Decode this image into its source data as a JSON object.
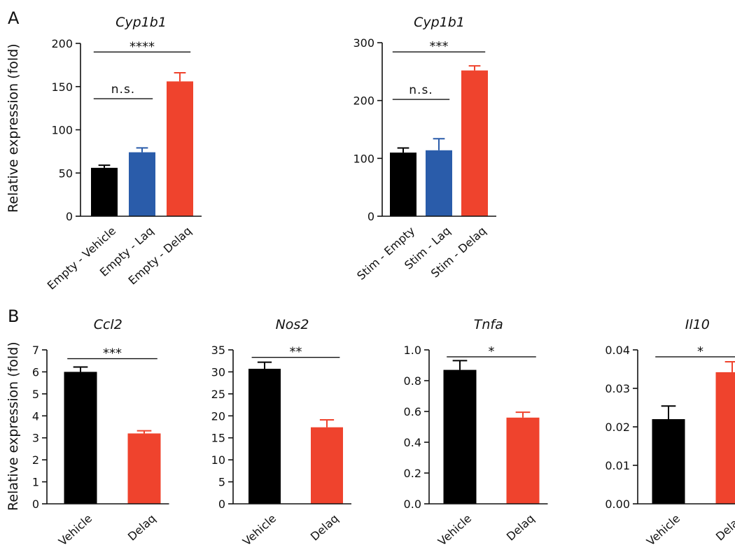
{
  "panels": [
    {
      "letter": "A",
      "ylabel": "Relative expression (fold)"
    },
    {
      "letter": "B",
      "ylabel": "Relative expression (fold)"
    }
  ],
  "colors": {
    "black": "#000000",
    "blue": "#2a5caa",
    "red": "#ef432d"
  },
  "chart_data": [
    {
      "type": "bar",
      "title": "Cyp1b1",
      "categories": [
        "Empty - Vehicle",
        "Empty - Laq",
        "Empty - Delaq"
      ],
      "values": [
        56,
        74,
        156
      ],
      "errors": [
        3,
        5,
        10
      ],
      "colors": [
        "#000000",
        "#2a5caa",
        "#ef432d"
      ],
      "ylim": [
        0,
        200
      ],
      "yticks": [
        0,
        50,
        100,
        150,
        200
      ],
      "annotations": [
        {
          "from": 0,
          "to": 1,
          "label": "n.s.",
          "y": 136
        },
        {
          "from": 0,
          "to": 2,
          "label": "****",
          "y": 190
        }
      ]
    },
    {
      "type": "bar",
      "title": "Cyp1b1",
      "categories": [
        "Stim - Empty",
        "Stim - Laq",
        "Stim - Delaq"
      ],
      "values": [
        110,
        114,
        252
      ],
      "errors": [
        8,
        20,
        8
      ],
      "colors": [
        "#000000",
        "#2a5caa",
        "#ef432d"
      ],
      "ylim": [
        0,
        300
      ],
      "yticks": [
        0,
        100,
        200,
        300
      ],
      "annotations": [
        {
          "from": 0,
          "to": 1,
          "label": "n.s.",
          "y": 202
        },
        {
          "from": 0,
          "to": 2,
          "label": "***",
          "y": 284
        }
      ]
    },
    {
      "type": "bar",
      "title": "Ccl2",
      "categories": [
        "Vehicle",
        "Delaq"
      ],
      "values": [
        6.0,
        3.2
      ],
      "errors": [
        0.22,
        0.12
      ],
      "colors": [
        "#000000",
        "#ef432d"
      ],
      "ylim": [
        0,
        7
      ],
      "yticks": [
        0,
        1,
        2,
        3,
        4,
        5,
        6,
        7
      ],
      "annotations": [
        {
          "from": 0,
          "to": 1,
          "label": "***",
          "y": 6.6
        }
      ]
    },
    {
      "type": "bar",
      "title": "Nos2",
      "categories": [
        "Vehicle",
        "Delaq"
      ],
      "values": [
        30.7,
        17.4
      ],
      "errors": [
        1.5,
        1.7
      ],
      "colors": [
        "#000000",
        "#ef432d"
      ],
      "ylim": [
        0,
        35
      ],
      "yticks": [
        0,
        5,
        10,
        15,
        20,
        25,
        30,
        35
      ],
      "annotations": [
        {
          "from": 0,
          "to": 1,
          "label": "**",
          "y": 33.3
        }
      ]
    },
    {
      "type": "bar",
      "title": "Tnfa",
      "categories": [
        "Vehicle",
        "Delaq"
      ],
      "values": [
        0.87,
        0.56
      ],
      "errors": [
        0.06,
        0.035
      ],
      "colors": [
        "#000000",
        "#ef432d"
      ],
      "ylim": [
        0,
        1.0
      ],
      "yticks": [
        0.0,
        0.2,
        0.4,
        0.6,
        0.8,
        1.0
      ],
      "ytick_labels": [
        "0.0",
        "0.2",
        "0.4",
        "0.6",
        "0.8",
        "1.0"
      ],
      "annotations": [
        {
          "from": 0,
          "to": 1,
          "label": "*",
          "y": 0.955
        }
      ]
    },
    {
      "type": "bar",
      "title": "Il10",
      "categories": [
        "Vehicle",
        "Delaq"
      ],
      "values": [
        0.022,
        0.0342
      ],
      "errors": [
        0.0034,
        0.0027
      ],
      "colors": [
        "#000000",
        "#ef432d"
      ],
      "ylim": [
        0,
        0.04
      ],
      "yticks": [
        0.0,
        0.01,
        0.02,
        0.03,
        0.04
      ],
      "ytick_labels": [
        "0.00",
        "0.01",
        "0.02",
        "0.03",
        "0.04"
      ],
      "annotations": [
        {
          "from": 0,
          "to": 1,
          "label": "*",
          "y": 0.0382
        }
      ]
    }
  ]
}
